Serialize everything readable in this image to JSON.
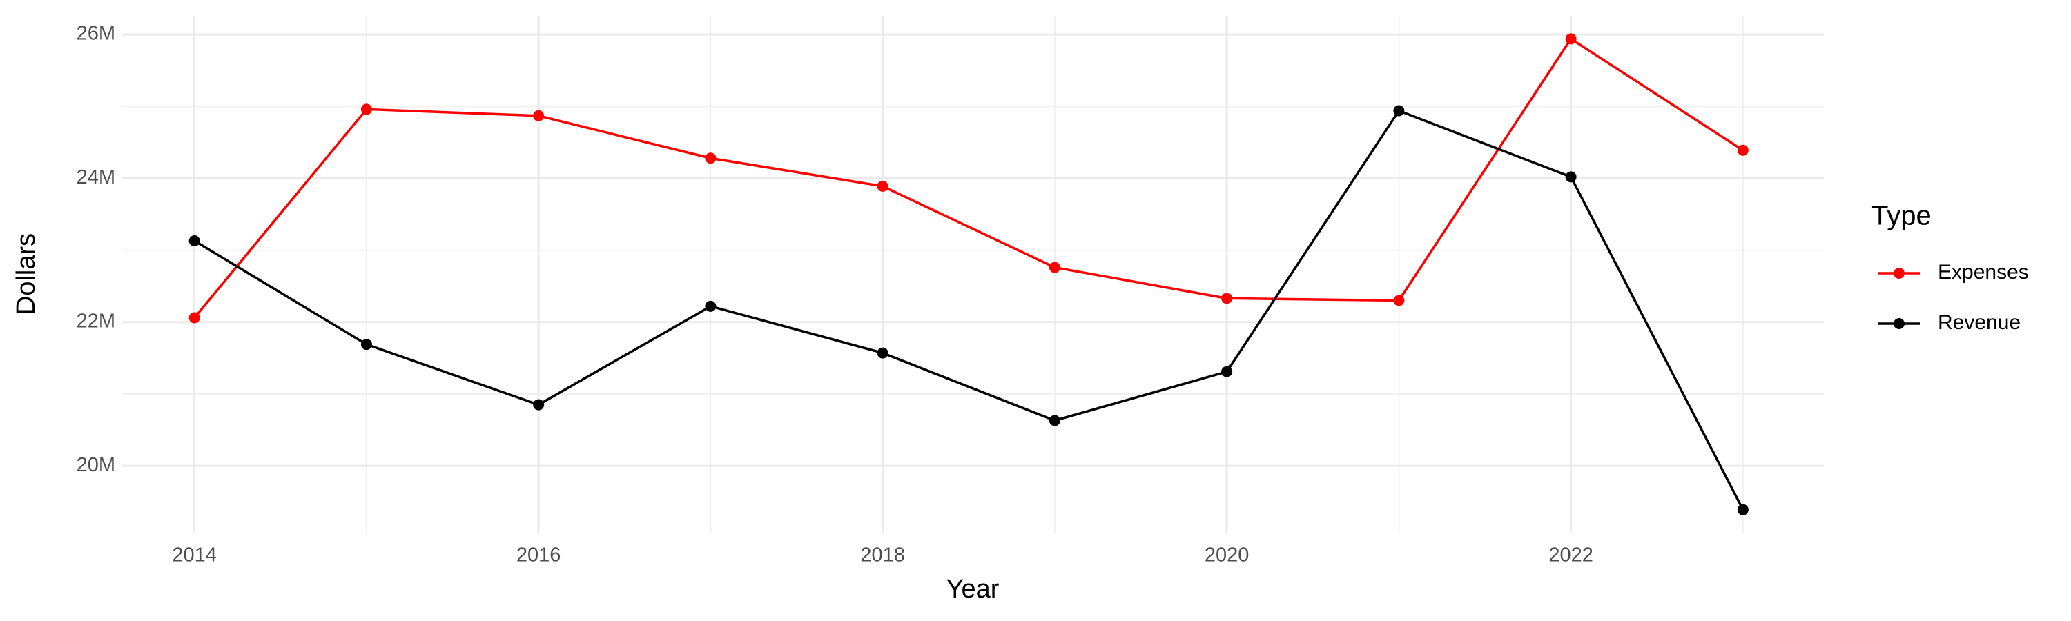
{
  "chart_data": {
    "type": "line",
    "x_label": "Year",
    "y_label": "Dollars",
    "legend_title": "Type",
    "x": [
      2014,
      2015,
      2016,
      2017,
      2018,
      2019,
      2020,
      2021,
      2022,
      2023
    ],
    "series": [
      {
        "name": "Expenses",
        "color": "#ff0000",
        "values": [
          22060000,
          24960000,
          24870000,
          24280000,
          23890000,
          22760000,
          22330000,
          22300000,
          25940000,
          24390000
        ]
      },
      {
        "name": "Revenue",
        "color": "#000000",
        "values": [
          23130000,
          21690000,
          20850000,
          22220000,
          21570000,
          20630000,
          21310000,
          24940000,
          24020000,
          19390000
        ]
      }
    ],
    "xlim": [
      2013.58,
      2023.47
    ],
    "xticks": [
      2014,
      2016,
      2018,
      2020,
      2022
    ],
    "ylim": [
      19070000,
      26260000
    ],
    "yticks": [
      {
        "value": 20000000,
        "label": "20M"
      },
      {
        "value": 22000000,
        "label": "22M"
      },
      {
        "value": 24000000,
        "label": "24M"
      },
      {
        "value": 26000000,
        "label": "26M"
      }
    ],
    "grid": true,
    "legend_position": "right"
  }
}
